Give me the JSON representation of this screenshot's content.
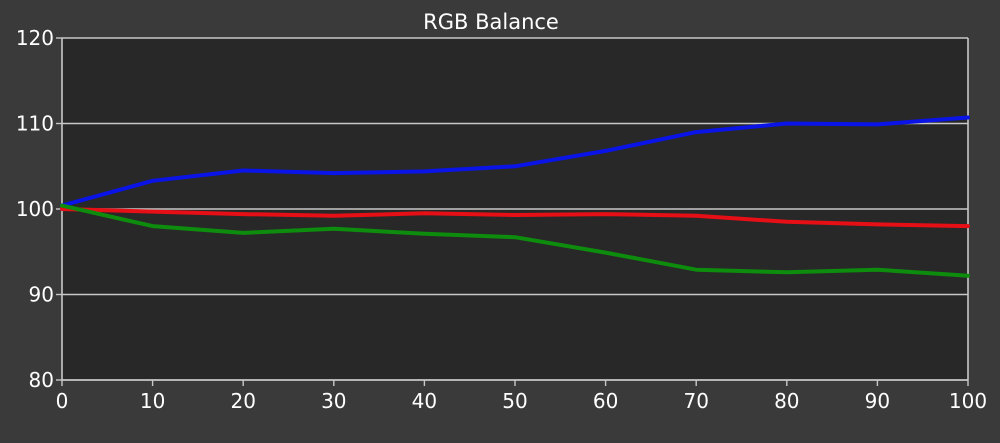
{
  "chart_data": {
    "type": "line",
    "title": "RGB Balance",
    "xlabel": "",
    "ylabel": "",
    "xlim": [
      0,
      100
    ],
    "ylim": [
      80,
      120
    ],
    "x": [
      0,
      10,
      20,
      30,
      40,
      50,
      60,
      70,
      80,
      90,
      100
    ],
    "x_ticks": [
      "0",
      "10",
      "20",
      "30",
      "40",
      "50",
      "60",
      "70",
      "80",
      "90",
      "100"
    ],
    "y_ticks": [
      "80",
      "90",
      "100",
      "110",
      "120"
    ],
    "grid": true,
    "legend": "none",
    "series": [
      {
        "color": "#0a14e6",
        "values": [
          100.4,
          103.3,
          104.5,
          104.2,
          104.4,
          105.0,
          106.8,
          109.0,
          110.0,
          109.9,
          110.7
        ]
      },
      {
        "color": "#e60f16",
        "values": [
          100.0,
          99.7,
          99.4,
          99.2,
          99.5,
          99.3,
          99.4,
          99.2,
          98.5,
          98.2,
          98.0
        ]
      },
      {
        "color": "#0d8c0d",
        "values": [
          100.4,
          98.0,
          97.2,
          97.7,
          97.1,
          96.7,
          94.9,
          92.9,
          92.6,
          92.9,
          92.2
        ]
      }
    ],
    "colors": {
      "background": "#3a3a3a",
      "plot_background": "#282828",
      "grid": "#c8c8c8",
      "text": "#ffffff"
    }
  }
}
